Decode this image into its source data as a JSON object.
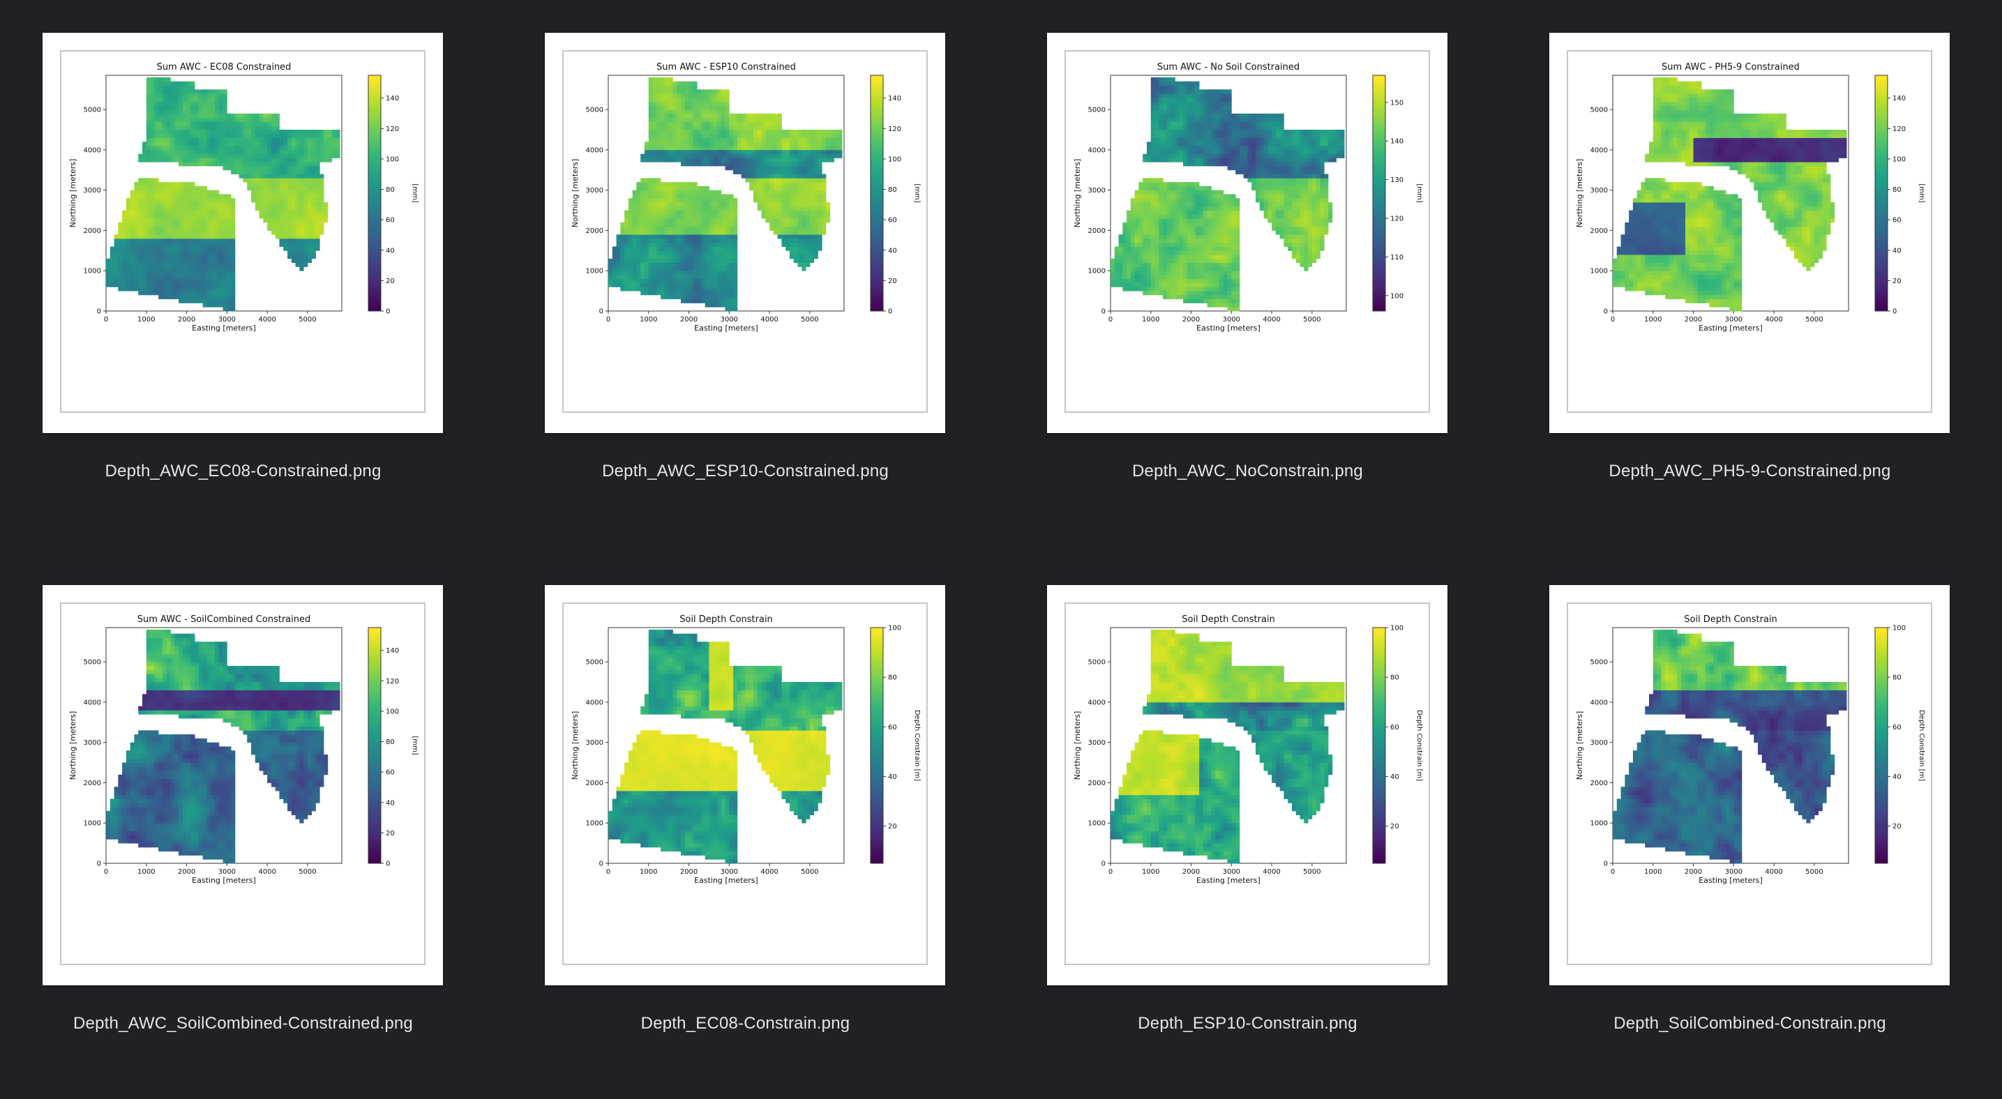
{
  "files": [
    {
      "filename": "Depth_AWC_EC08-Constrained.png",
      "plot_title": "Sum AWC - EC08 Constrained",
      "cbar_label": "[mm]",
      "cbar_ticks": [
        "0",
        "20",
        "40",
        "60",
        "80",
        "100",
        "120",
        "140"
      ],
      "cbar_range": [
        0,
        155
      ],
      "pattern": "ec08"
    },
    {
      "filename": "Depth_AWC_ESP10-Constrained.png",
      "plot_title": "Sum AWC - ESP10 Constrained",
      "cbar_label": "[mm]",
      "cbar_ticks": [
        "0",
        "20",
        "40",
        "60",
        "80",
        "100",
        "120",
        "140"
      ],
      "cbar_range": [
        0,
        155
      ],
      "pattern": "esp10"
    },
    {
      "filename": "Depth_AWC_NoConstrain.png",
      "plot_title": "Sum AWC - No Soil Constrained",
      "cbar_label": "[mm]",
      "cbar_ticks": [
        "100",
        "110",
        "120",
        "130",
        "140",
        "150"
      ],
      "cbar_range": [
        96,
        157
      ],
      "pattern": "nocon"
    },
    {
      "filename": "Depth_AWC_PH5-9-Constrained.png",
      "plot_title": "Sum AWC - PH5-9 Constrained",
      "cbar_label": "[mm]",
      "cbar_ticks": [
        "0",
        "20",
        "40",
        "60",
        "80",
        "100",
        "120",
        "140"
      ],
      "cbar_range": [
        0,
        155
      ],
      "pattern": "ph"
    },
    {
      "filename": "Depth_AWC_SoilCombined-Constrained.png",
      "plot_title": "Sum AWC - SoilCombined Constrained",
      "cbar_label": "[mm]",
      "cbar_ticks": [
        "0",
        "20",
        "40",
        "60",
        "80",
        "100",
        "120",
        "140"
      ],
      "cbar_range": [
        0,
        155
      ],
      "pattern": "combined"
    },
    {
      "filename": "Depth_EC08-Constrain.png",
      "plot_title": "Soil Depth Constrain",
      "cbar_label": "Depth Constrain [m]",
      "cbar_ticks": [
        "20",
        "40",
        "60",
        "80",
        "100"
      ],
      "cbar_range": [
        5,
        100
      ],
      "pattern": "depth_ec08"
    },
    {
      "filename": "Depth_ESP10-Constrain.png",
      "plot_title": "Soil Depth Constrain",
      "cbar_label": "Depth Constrain [m]",
      "cbar_ticks": [
        "20",
        "40",
        "60",
        "80",
        "100"
      ],
      "cbar_range": [
        5,
        100
      ],
      "pattern": "depth_esp10"
    },
    {
      "filename": "Depth_SoilCombined-Constrain.png",
      "plot_title": "Soil Depth Constrain",
      "cbar_label": "Depth Constrain [m]",
      "cbar_ticks": [
        "20",
        "40",
        "60",
        "80",
        "100"
      ],
      "cbar_range": [
        5,
        100
      ],
      "pattern": "depth_combined"
    }
  ],
  "axes": {
    "xlabel": "Easting [meters]",
    "ylabel": "Northing [meters]",
    "xticks": [
      "0",
      "1000",
      "2000",
      "3000",
      "4000",
      "5000"
    ],
    "yticks": [
      "0",
      "1000",
      "2000",
      "3000",
      "4000",
      "5000"
    ],
    "xlim": [
      0,
      5850
    ],
    "ylim": [
      0,
      5850
    ]
  },
  "colors": {
    "background": "#1f2124",
    "filename_text": "#e6e6e6",
    "viridis": [
      "#440154",
      "#482878",
      "#3e4989",
      "#31688e",
      "#26828e",
      "#1f9e89",
      "#35b779",
      "#6ece58",
      "#b5de2b",
      "#fde725"
    ]
  }
}
